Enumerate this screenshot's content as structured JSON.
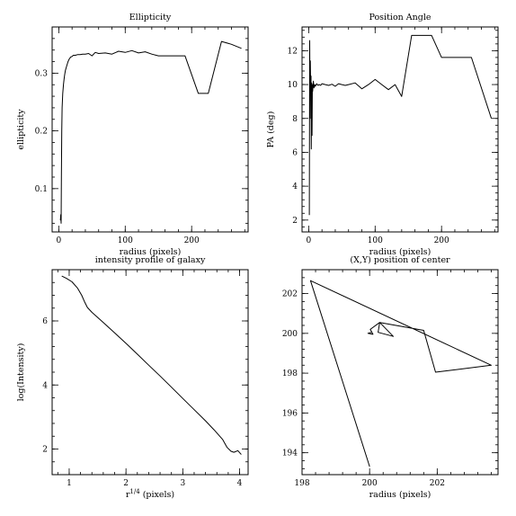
{
  "chart_data": [
    {
      "type": "line",
      "title": "Ellipticity",
      "xlabel": "radius (pixels)",
      "ylabel": "ellipticity",
      "xlim": [
        -10,
        285
      ],
      "ylim": [
        0.025,
        0.38
      ],
      "x_ticks": [
        0,
        100,
        200
      ],
      "y_ticks": [
        0.1,
        0.2,
        0.3
      ],
      "x_tick_labels": [
        "0",
        "100",
        "200"
      ],
      "y_tick_labels": [
        "0.1",
        "0.2",
        "0.3"
      ],
      "x": [
        2.5,
        3,
        3.5,
        4,
        4.5,
        5,
        6,
        7,
        8,
        9,
        10,
        12,
        14,
        16,
        18,
        20,
        22,
        25,
        28,
        32,
        36,
        40,
        45,
        50,
        55,
        60,
        70,
        80,
        90,
        100,
        110,
        120,
        130,
        140,
        150,
        190,
        210,
        225,
        245,
        260,
        275
      ],
      "y": [
        0.045,
        0.055,
        0.04,
        0.12,
        0.2,
        0.24,
        0.265,
        0.28,
        0.29,
        0.298,
        0.305,
        0.313,
        0.32,
        0.325,
        0.328,
        0.329,
        0.331,
        0.331,
        0.332,
        0.332,
        0.333,
        0.333,
        0.334,
        0.33,
        0.336,
        0.334,
        0.335,
        0.333,
        0.338,
        0.336,
        0.339,
        0.335,
        0.337,
        0.333,
        0.33,
        0.33,
        0.265,
        0.265,
        0.355,
        0.35,
        0.343
      ]
    },
    {
      "type": "line",
      "title": "Position Angle",
      "xlabel": "radius (pixels)",
      "ylabel": "PA (deg)",
      "xlim": [
        -10,
        285
      ],
      "ylim": [
        1.3,
        13.4
      ],
      "x_ticks": [
        0,
        100,
        200
      ],
      "y_ticks": [
        2,
        4,
        6,
        8,
        10,
        12
      ],
      "x_tick_labels": [
        "0",
        "100",
        "200"
      ],
      "y_tick_labels": [
        "2",
        "4",
        "6",
        "8",
        "10",
        "12"
      ],
      "x": [
        1,
        1.5,
        2,
        2.5,
        3,
        3.5,
        4,
        4.5,
        5,
        5.5,
        6,
        7,
        8,
        9,
        10,
        12,
        14,
        16,
        18,
        20,
        25,
        30,
        35,
        40,
        45,
        50,
        55,
        60,
        70,
        80,
        90,
        100,
        110,
        120,
        130,
        140,
        155,
        185,
        200,
        245,
        275
      ],
      "y": [
        2.3,
        12.6,
        8.0,
        11.4,
        9.5,
        10.5,
        6.2,
        10.1,
        7.0,
        10.0,
        9.6,
        10.2,
        9.8,
        10.0,
        9.9,
        10.05,
        9.95,
        10.0,
        9.95,
        10.05,
        10.0,
        9.95,
        10.02,
        9.9,
        10.05,
        10.0,
        9.95,
        10.0,
        10.1,
        9.75,
        10.0,
        10.3,
        10.0,
        9.7,
        10.0,
        9.3,
        12.9,
        12.9,
        11.6,
        11.6,
        8.0
      ]
    },
    {
      "type": "line",
      "title": "intensity profile of galaxy",
      "xlabel": "r^{1/4} (pixels)",
      "ylabel": "log(Intensity)",
      "xlim": [
        0.7,
        4.15
      ],
      "ylim": [
        1.2,
        7.6
      ],
      "x_ticks": [
        1,
        2,
        3,
        4
      ],
      "y_ticks": [
        2,
        4,
        6
      ],
      "x_tick_labels": [
        "1",
        "2",
        "3",
        "4"
      ],
      "y_tick_labels": [
        "2",
        "4",
        "6"
      ],
      "x": [
        0.87,
        0.95,
        1.05,
        1.15,
        1.22,
        1.27,
        1.32,
        1.4,
        1.6,
        1.8,
        2.0,
        2.2,
        2.4,
        2.6,
        2.8,
        3.0,
        3.2,
        3.4,
        3.55,
        3.7,
        3.78,
        3.85,
        3.9,
        3.97,
        4.03
      ],
      "y": [
        7.4,
        7.33,
        7.22,
        7.02,
        6.8,
        6.6,
        6.42,
        6.27,
        5.95,
        5.63,
        5.3,
        4.96,
        4.62,
        4.28,
        3.93,
        3.58,
        3.23,
        2.88,
        2.6,
        2.3,
        2.05,
        1.93,
        1.9,
        1.95,
        1.83
      ]
    },
    {
      "type": "line",
      "title": "(X,Y) position of center",
      "xlabel": "radius (pixels)",
      "ylabel": "",
      "xlim": [
        198,
        203.8
      ],
      "ylim": [
        192.9,
        203.2
      ],
      "x_ticks": [
        198,
        200,
        202
      ],
      "y_ticks": [
        194,
        196,
        198,
        200,
        202
      ],
      "x_tick_labels": [
        "198",
        "200",
        "202"
      ],
      "y_tick_labels": [
        "194",
        "196",
        "198",
        "200",
        "202"
      ],
      "x": [
        200.05,
        199.95,
        200.1,
        200.02,
        200.3,
        200.25,
        200.7,
        200.3,
        201.6,
        201.95,
        203.6,
        198.25,
        200.0
      ],
      "y": [
        200.05,
        200.0,
        199.95,
        200.2,
        200.55,
        200.05,
        199.85,
        200.55,
        200.15,
        198.05,
        198.4,
        202.65,
        193.3
      ]
    }
  ]
}
